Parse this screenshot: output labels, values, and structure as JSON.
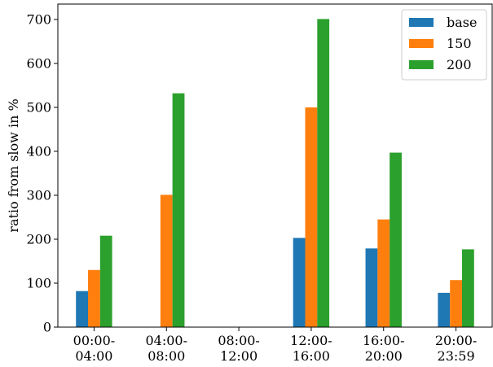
{
  "chart_data": {
    "type": "bar",
    "title": "",
    "xlabel": "",
    "ylabel": "ratio from slow in %",
    "ylim": [
      0,
      735
    ],
    "yticks": [
      0,
      100,
      200,
      300,
      400,
      500,
      600,
      700
    ],
    "categories": [
      [
        "00:00-",
        "04:00"
      ],
      [
        "04:00-",
        "08:00"
      ],
      [
        "08:00-",
        "12:00"
      ],
      [
        "12:00-",
        "16:00"
      ],
      [
        "16:00-",
        "20:00"
      ],
      [
        "20:00-",
        "23:59"
      ]
    ],
    "series": [
      {
        "name": "base",
        "color": "#1f77b4",
        "values": [
          82,
          0,
          0,
          203,
          179,
          78
        ]
      },
      {
        "name": "150",
        "color": "#ff7f0e",
        "values": [
          130,
          301,
          0,
          500,
          245,
          107
        ]
      },
      {
        "name": "200",
        "color": "#2ca02c",
        "values": [
          208,
          532,
          0,
          701,
          397,
          177
        ]
      }
    ],
    "legend_position": "top-right",
    "grid": false
  }
}
